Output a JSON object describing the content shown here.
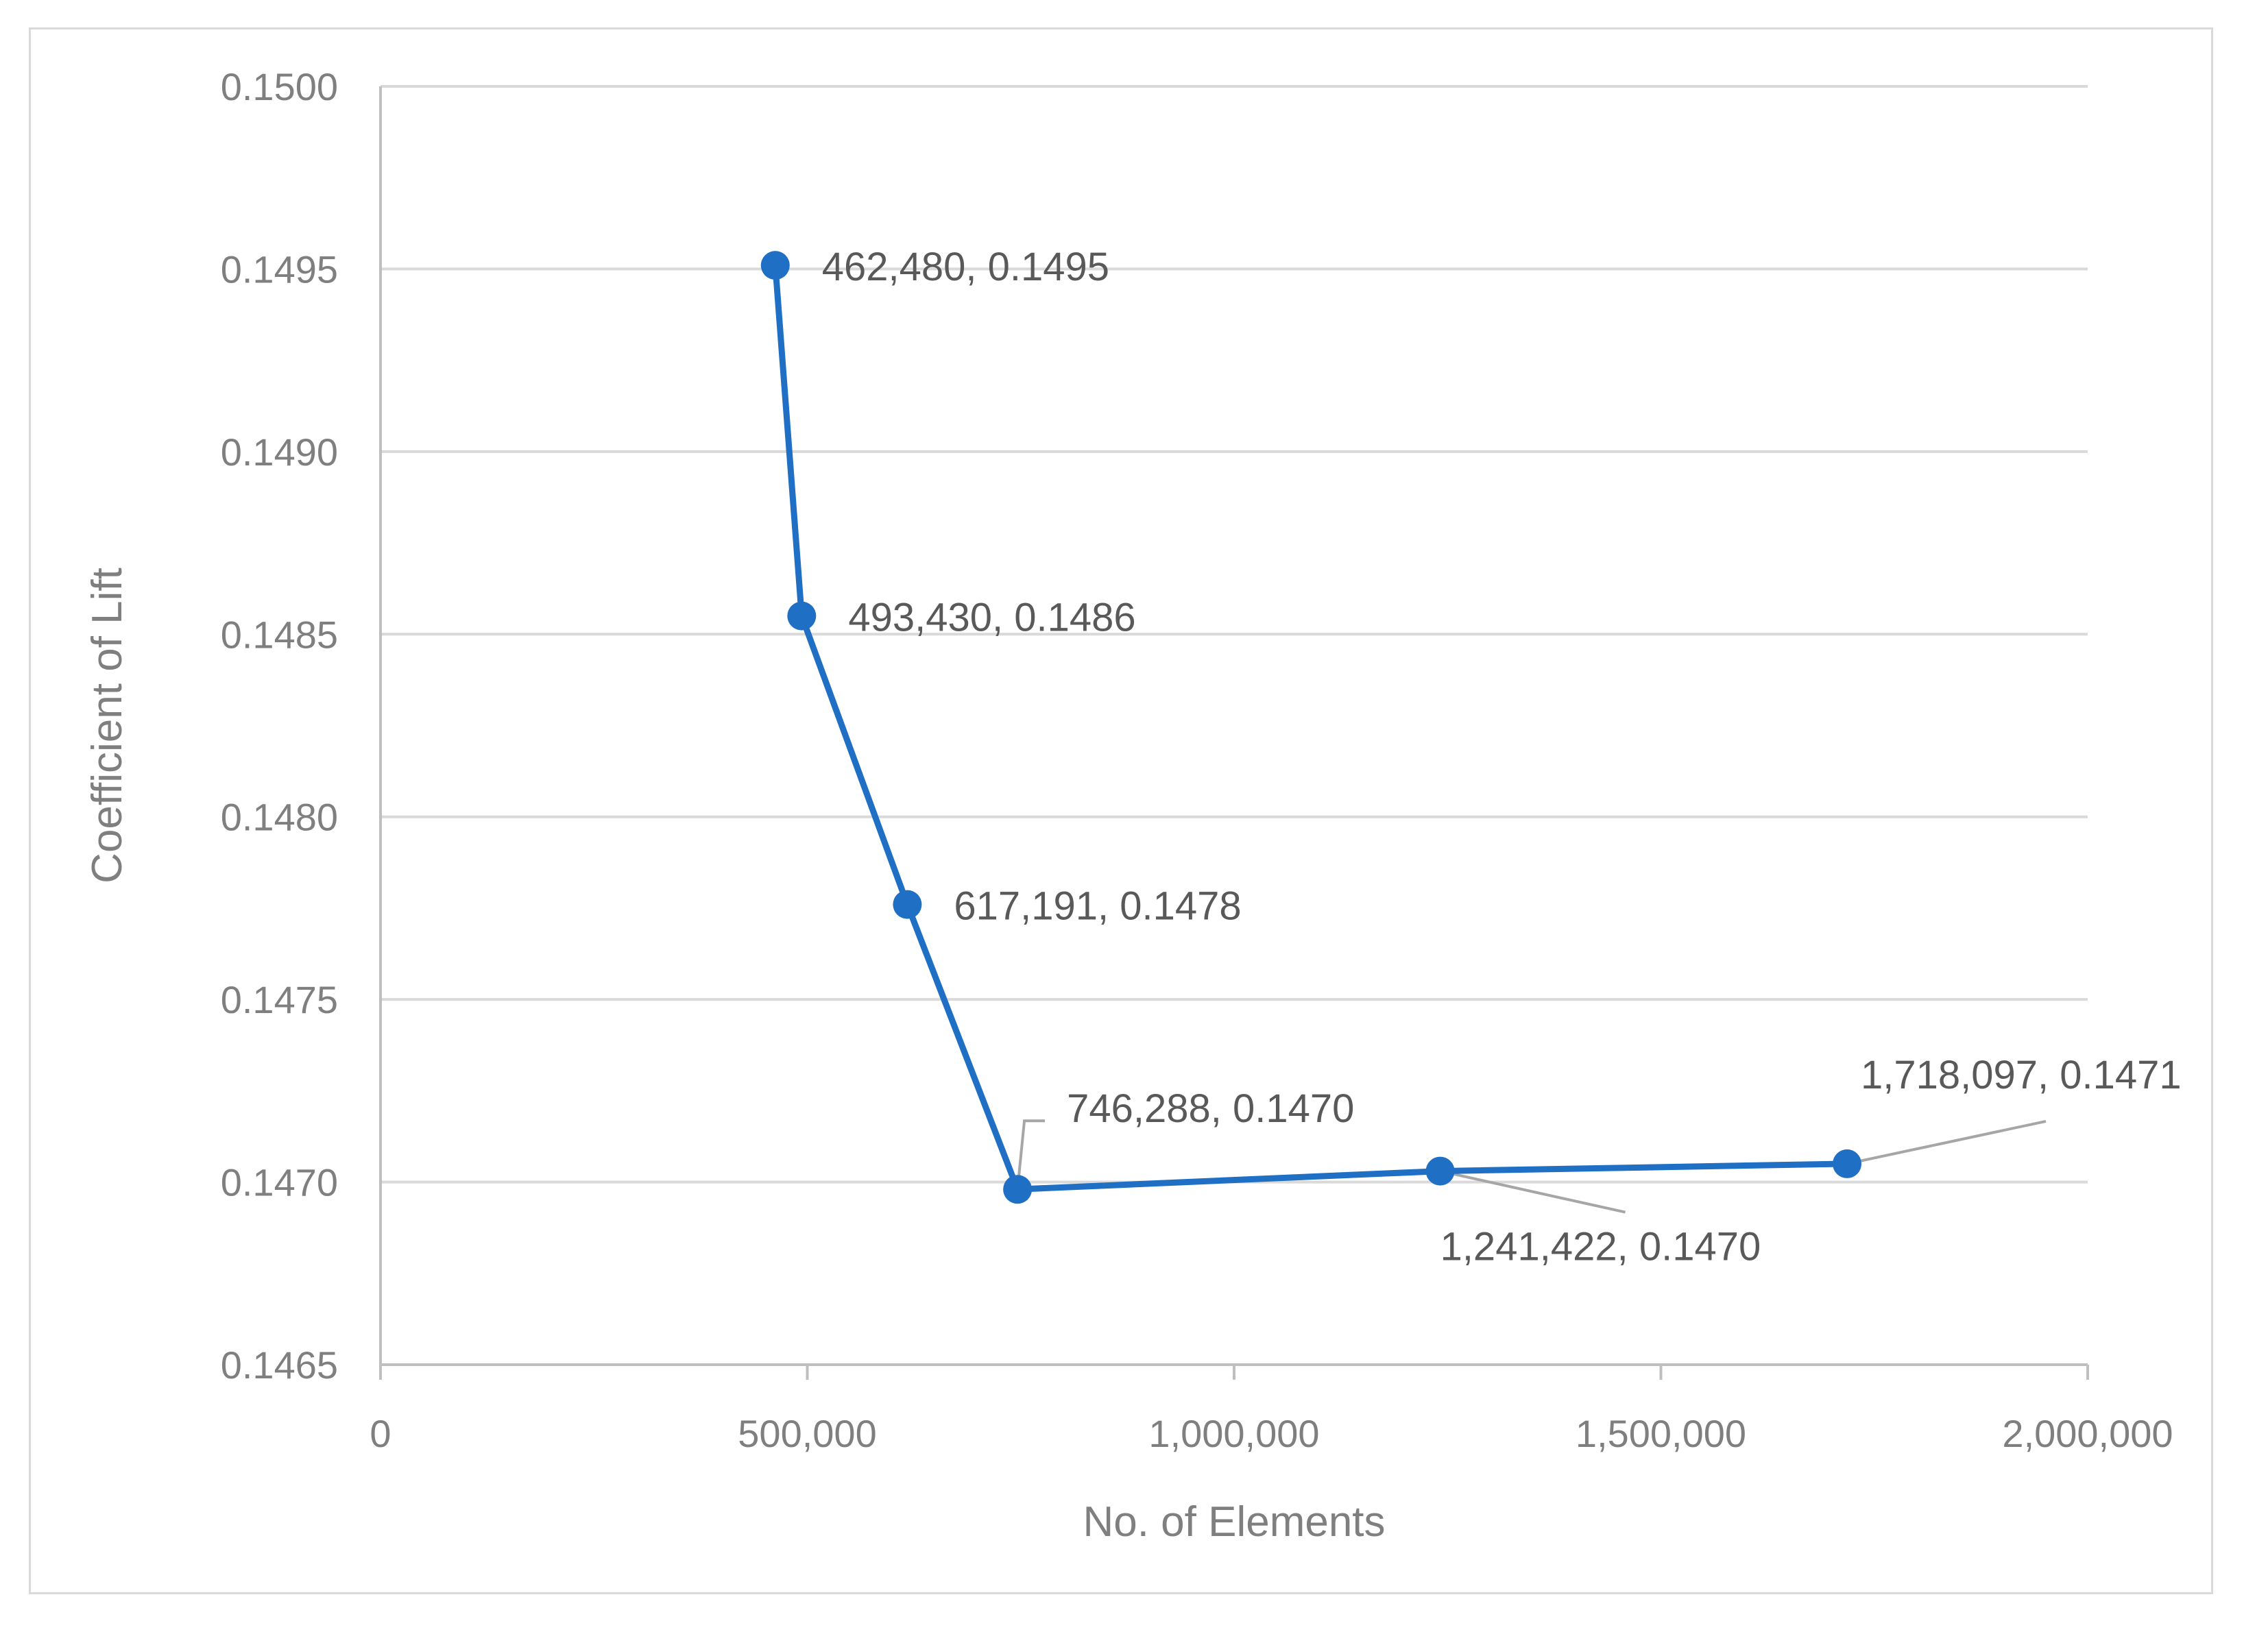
{
  "chart_data": {
    "type": "line",
    "title": "",
    "xlabel": "No. of Elements",
    "ylabel": "Coefficient of Lift",
    "xlim": [
      0,
      2000000
    ],
    "ylim": [
      0.1465,
      0.15
    ],
    "x_ticks": [
      "0",
      "500,000",
      "1,000,000",
      "1,500,000",
      "2,000,000"
    ],
    "y_ticks": [
      "0.1465",
      "0.1470",
      "0.1475",
      "0.1480",
      "0.1485",
      "0.1490",
      "0.1495",
      "0.1500"
    ],
    "grid": "horizontal",
    "legend": "none",
    "series": [
      {
        "color": "#1f6fc5",
        "points": [
          {
            "x": 462480,
            "y": 0.14951,
            "label": "462,480, 0.1495"
          },
          {
            "x": 493430,
            "y": 0.14855,
            "label": "493,430, 0.1486"
          },
          {
            "x": 617191,
            "y": 0.14776,
            "label": "617,191, 0.1478"
          },
          {
            "x": 746288,
            "y": 0.14698,
            "label": "746,288, 0.1470"
          },
          {
            "x": 1241422,
            "y": 0.14703,
            "label": "1,241,422, 0.1470"
          },
          {
            "x": 1718097,
            "y": 0.14705,
            "label": "1,718,097, 0.1471"
          }
        ]
      }
    ],
    "colors": {
      "line": "#1f6fc5",
      "grid": "#d9d9d9",
      "axis": "#bfbfbf",
      "leader": "#a6a6a6"
    }
  }
}
